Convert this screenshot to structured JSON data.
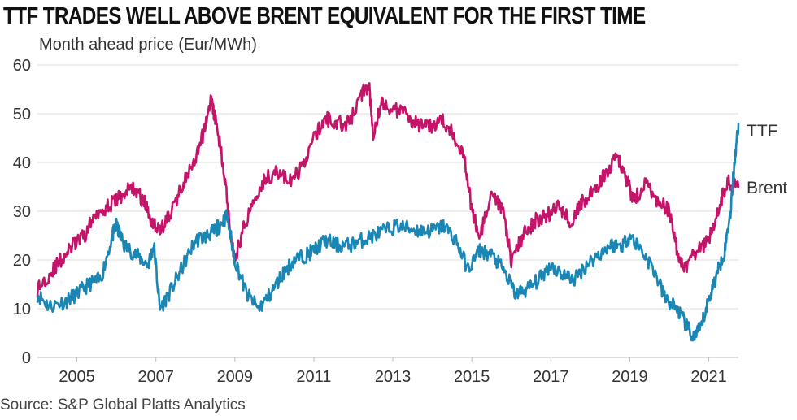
{
  "title": "TTF TRADES WELL ABOVE BRENT EQUIVALENT FOR THE FIRST TIME",
  "source": "Source: S&P Global Platts Analytics",
  "chart_data": {
    "type": "line",
    "title": "TTF TRADES WELL ABOVE BRENT EQUIVALENT FOR THE FIRST TIME",
    "ylabel": "Month ahead price (Eur/MWh)",
    "xlabel": "",
    "ylim": [
      0,
      60
    ],
    "xlim": [
      2004.0,
      2021.75
    ],
    "y_ticks": [
      0,
      10,
      20,
      30,
      40,
      50,
      60
    ],
    "x_ticks": [
      2005,
      2007,
      2009,
      2011,
      2013,
      2015,
      2017,
      2019,
      2021
    ],
    "grid": "horizontal",
    "series": [
      {
        "name": "TTF",
        "color": "#1a86b4",
        "x": [
          2004.0,
          2004.3,
          2004.7,
          2005.0,
          2005.3,
          2005.6,
          2005.9,
          2006.0,
          2006.2,
          2006.5,
          2006.8,
          2006.95,
          2007.1,
          2007.4,
          2007.7,
          2008.0,
          2008.3,
          2008.5,
          2008.6,
          2008.8,
          2009.0,
          2009.3,
          2009.6,
          2009.9,
          2010.2,
          2010.5,
          2010.8,
          2011.0,
          2011.3,
          2011.6,
          2011.9,
          2012.2,
          2012.5,
          2012.8,
          2013.1,
          2013.4,
          2013.7,
          2014.0,
          2014.3,
          2014.6,
          2014.9,
          2015.2,
          2015.5,
          2015.8,
          2016.1,
          2016.4,
          2016.7,
          2017.0,
          2017.3,
          2017.6,
          2017.9,
          2018.2,
          2018.5,
          2018.8,
          2019.0,
          2019.3,
          2019.6,
          2019.9,
          2020.2,
          2020.4,
          2020.6,
          2020.8,
          2021.0,
          2021.2,
          2021.4,
          2021.55,
          2021.65,
          2021.75
        ],
        "values": [
          13,
          10.5,
          11.5,
          13,
          15,
          16,
          25,
          27,
          23,
          21,
          19,
          23,
          10,
          14,
          19,
          24,
          25,
          26,
          27,
          29,
          20,
          13,
          10,
          13,
          17,
          20,
          21,
          22,
          24,
          23,
          23,
          24,
          25,
          26,
          27,
          26.5,
          26,
          26,
          27,
          24,
          18,
          22,
          21,
          18,
          13,
          14,
          16,
          19,
          17,
          16,
          19,
          21,
          23,
          23,
          25,
          22,
          18,
          12,
          10,
          7,
          4,
          6,
          12,
          17,
          22,
          30,
          40,
          48
        ]
      },
      {
        "name": "Brent",
        "color": "#c4146a",
        "x": [
          2004.0,
          2004.3,
          2004.6,
          2004.9,
          2005.2,
          2005.5,
          2005.8,
          2006.1,
          2006.4,
          2006.7,
          2006.9,
          2007.1,
          2007.4,
          2007.7,
          2008.0,
          2008.2,
          2008.4,
          2008.5,
          2008.7,
          2008.9,
          2009.0,
          2009.2,
          2009.5,
          2009.8,
          2010.1,
          2010.4,
          2010.7,
          2011.0,
          2011.3,
          2011.6,
          2011.9,
          2012.2,
          2012.4,
          2012.5,
          2012.7,
          2013.0,
          2013.3,
          2013.6,
          2013.9,
          2014.2,
          2014.5,
          2014.8,
          2015.0,
          2015.2,
          2015.5,
          2015.8,
          2016.0,
          2016.3,
          2016.6,
          2016.9,
          2017.2,
          2017.5,
          2017.8,
          2018.1,
          2018.4,
          2018.7,
          2018.9,
          2019.1,
          2019.4,
          2019.7,
          2020.0,
          2020.2,
          2020.4,
          2020.7,
          2021.0,
          2021.3,
          2021.5,
          2021.75
        ],
        "values": [
          14,
          17,
          20,
          23,
          25,
          30,
          31,
          33,
          35,
          32,
          28,
          26,
          30,
          36,
          40,
          46,
          53,
          49,
          40,
          25,
          20,
          26,
          33,
          37,
          38,
          36,
          39,
          45,
          49,
          48,
          48,
          54,
          56,
          46,
          52,
          51,
          50,
          48,
          47,
          49,
          46,
          42,
          30,
          25,
          33,
          30,
          20,
          25,
          28,
          29,
          31,
          28,
          32,
          34,
          38,
          41,
          37,
          32,
          36,
          32,
          30,
          22,
          18,
          22,
          24,
          32,
          36,
          35
        ]
      }
    ]
  }
}
